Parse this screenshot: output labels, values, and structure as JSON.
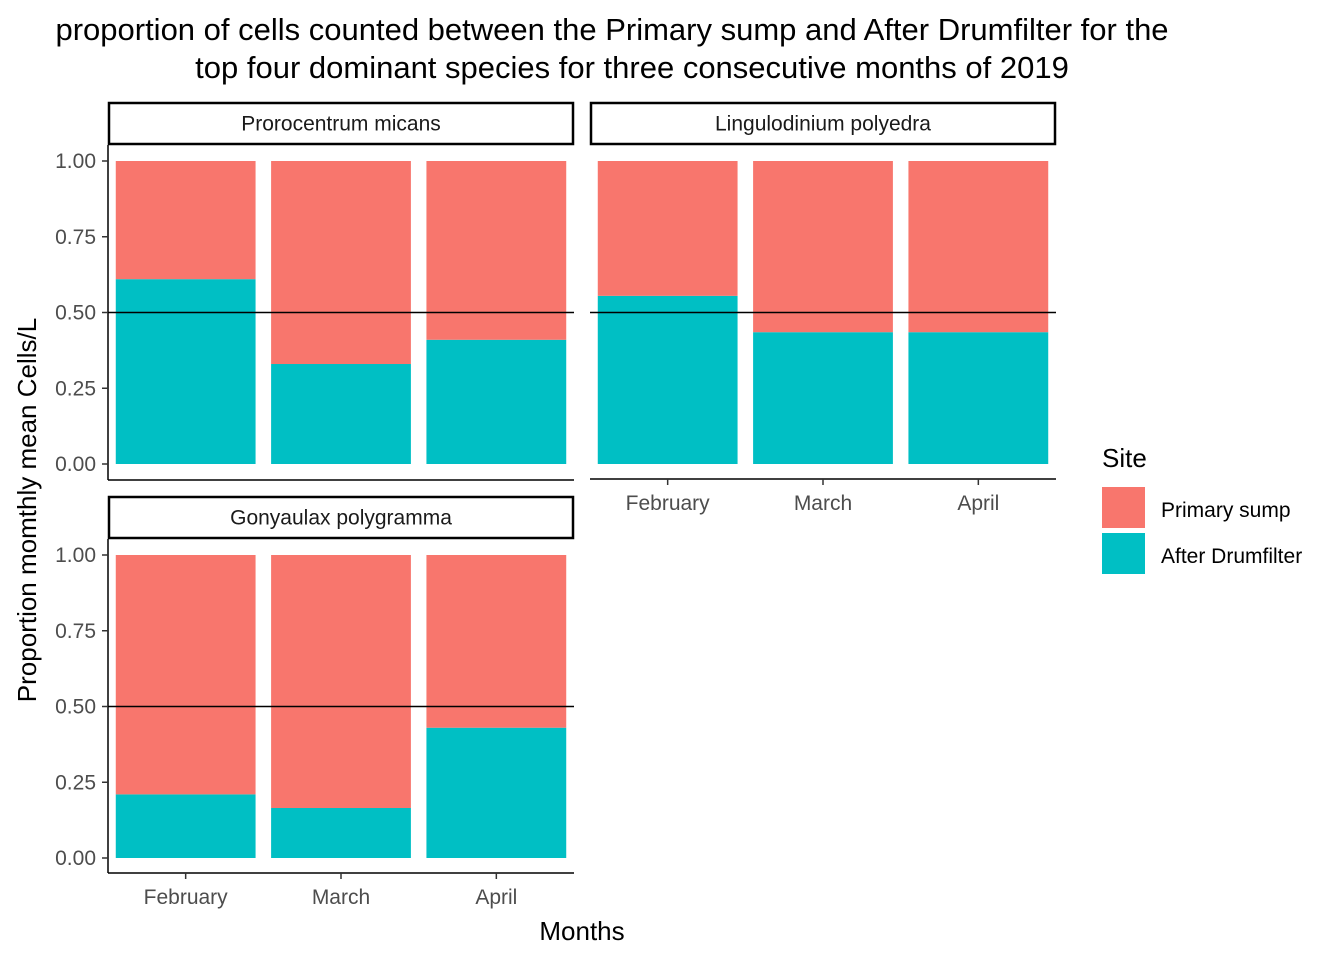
{
  "chart_data": {
    "type": "bar",
    "stacked": true,
    "title_line1": "proportion of cells counted between the Primary sump and After Drumfilter for the",
    "title_line2": "top four dominant species for three consecutive months of 2019",
    "xlabel": "Months",
    "ylabel": "Proportion momthly mean Cells/L",
    "ylim": [
      0,
      1
    ],
    "yticks": [
      "0.00",
      "0.25",
      "0.50",
      "0.75",
      "1.00"
    ],
    "categories": [
      "February",
      "March",
      "April"
    ],
    "reference_line": 0.5,
    "legend": {
      "title": "Site",
      "placement": "right",
      "items": [
        {
          "name": "Primary sump",
          "color": "#F8766D"
        },
        {
          "name": "After Drumfilter",
          "color": "#00BFC4"
        }
      ]
    },
    "facets": [
      {
        "name": "Prorocentrum micans",
        "series": [
          {
            "name": "After Drumfilter",
            "values": [
              0.61,
              0.33,
              0.41
            ]
          },
          {
            "name": "Primary sump",
            "values": [
              0.39,
              0.67,
              0.59
            ]
          }
        ]
      },
      {
        "name": "Lingulodinium polyedra",
        "series": [
          {
            "name": "After Drumfilter",
            "values": [
              0.555,
              0.435,
              0.435
            ]
          },
          {
            "name": "Primary sump",
            "values": [
              0.445,
              0.565,
              0.565
            ]
          }
        ]
      },
      {
        "name": "Gonyaulax polygramma",
        "series": [
          {
            "name": "After Drumfilter",
            "values": [
              0.21,
              0.165,
              0.43
            ]
          },
          {
            "name": "Primary sump",
            "values": [
              0.79,
              0.835,
              0.57
            ]
          }
        ]
      }
    ]
  }
}
